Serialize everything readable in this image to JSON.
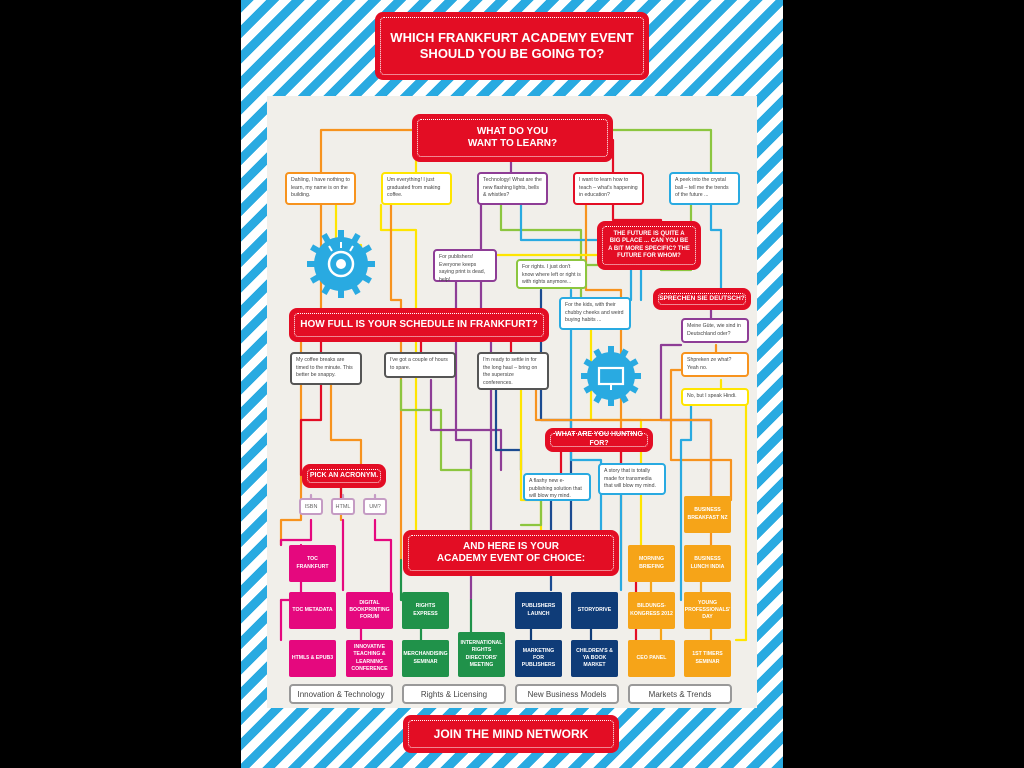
{
  "title": [
    "WHICH FRANKFURT ACADEMY EVENT",
    "SHOULD YOU BE GOING TO?"
  ],
  "learn_banner": [
    "WHAT DO YOU",
    "WANT TO LEARN?"
  ],
  "learn_options": [
    "Dahling, I have nothing to learn, my name is on the building.",
    "Um everything! I just graduated from making coffee.",
    "Technology! What are the new flashing lights, bells & whistles?",
    "I want to learn how to teach – what's happening in education?",
    "A peek into the crystal ball – tell me the trends of the future ..."
  ],
  "future_banner": [
    "THE FUTURE IS QUITE A",
    "BIG PLACE ... CAN YOU BE",
    "A BIT MORE SPECIFIC? THE",
    "FUTURE FOR WHOM?"
  ],
  "future_options": [
    "For publishers! Everyone keeps saying print is dead, help!",
    "For rights. I just don't know where left or right is with rights anymore...",
    "For the kids, with their chubby cheeks and weird buying habits ..."
  ],
  "german_banner": "SPRECHEN SIE DEUTSCH?",
  "german_options": [
    "Meine Güte, wie sind in Deutschland oder?",
    "Shpreken ze what? Yeah no.",
    "No, but I speak Hindi."
  ],
  "schedule_banner": "HOW FULL IS YOUR SCHEDULE IN FRANKFURT?",
  "schedule_options": [
    "My coffee breaks are timed to the minute. This better be snappy.",
    "I've got a couple of hours to spare.",
    "I'm ready to settle in for the long haul – bring on the supersize conferences."
  ],
  "hunting_banner": "WHAT ARE YOU HUNTING FOR?",
  "hunting_options": [
    "A flashy new e-publishing solution that will blow my mind.",
    "A story that is totally made for transmedia that will blow my mind."
  ],
  "acronym_banner": "PICK AN ACRONYM.",
  "acronyms": [
    "ISBN",
    "HTML",
    "UM?"
  ],
  "choice_banner": [
    "AND HERE IS YOUR",
    "ACADEMY EVENT OF CHOICE:"
  ],
  "events": {
    "innovation": [
      "TOC FRANKFURT",
      "TOC METADATA",
      "DIGITAL BOOKPRINTING FORUM",
      "HTML5 & EPUB3",
      "INNOVATIVE TEACHING & LEARNING CONFERENCE"
    ],
    "rights": [
      "RIGHTS EXPRESS",
      "MERCHANDISING SEMINAR",
      "INTERNATIONAL RIGHTS DIRECTORS' MEETING"
    ],
    "business": [
      "PUBLISHERS LAUNCH",
      "STORYDRIVE",
      "MARKETING FOR PUBLISHERS",
      "CHILDREN'S & YA BOOK MARKET"
    ],
    "markets": [
      "BUSINESS BREAKFAST NZ",
      "MORNING BRIEFING",
      "BUSINESS LUNCH INDIA",
      "BILDUNGS-KONGRESS 2012",
      "YOUNG PROFESSIONALS' DAY",
      "CEO PANEL",
      "1ST TIMERS SEMINAR"
    ]
  },
  "categories": [
    "Innovation & Technology",
    "Rights & Licensing",
    "New Business Models",
    "Markets & Trends"
  ],
  "footer": "JOIN THE MIND NETWORK",
  "colors": {
    "red": "#e30d24",
    "stripe_blue": "#29aae1",
    "panel": "#f1efea",
    "innovation": "#e5087e",
    "rights": "#20924a",
    "business": "#0f3c78",
    "markets": "#f6a418",
    "wire_orange": "#f7931e",
    "wire_yellow": "#ffe500",
    "wire_purple": "#8e3d96",
    "wire_green": "#8cc63f",
    "wire_blue": "#29aae1",
    "wire_navy": "#1b4b91"
  },
  "icons": [
    "gear-eye-icon",
    "gear-tv-icon"
  ]
}
